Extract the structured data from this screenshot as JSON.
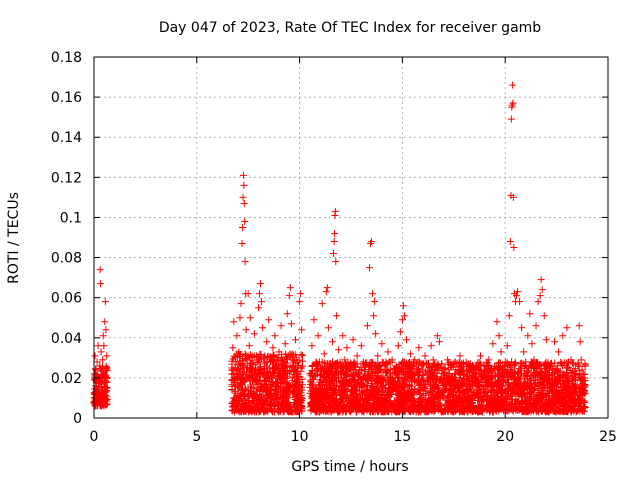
{
  "chart_data": {
    "type": "scatter",
    "title": "Day 047 of 2023, Rate Of TEC Index for receiver gamb",
    "xlabel": "GPS time / hours",
    "ylabel": "ROTI / TECUs",
    "xlim": [
      0,
      25
    ],
    "ylim": [
      0,
      0.18
    ],
    "xticks": [
      0,
      5,
      10,
      15,
      20,
      25
    ],
    "yticks": [
      0,
      0.02,
      0.04,
      0.06,
      0.08,
      0.1,
      0.12,
      0.14,
      0.16,
      0.18
    ],
    "xtick_labels": [
      "0",
      "5",
      "10",
      "15",
      "20",
      "25"
    ],
    "ytick_labels": [
      "0",
      "0.02",
      "0.04",
      "0.06",
      "0.08",
      "0.1",
      "0.12",
      "0.14",
      "0.16",
      "0.18"
    ],
    "grid": true,
    "marker": "+",
    "color": "#ff0000",
    "series": [
      {
        "name": "ROTI",
        "points": [
          [
            0.0,
            0.012
          ],
          [
            0.02,
            0.02
          ],
          [
            0.05,
            0.031
          ],
          [
            0.08,
            0.016
          ],
          [
            0.1,
            0.024
          ],
          [
            0.12,
            0.009
          ],
          [
            0.15,
            0.028
          ],
          [
            0.18,
            0.014
          ],
          [
            0.2,
            0.036
          ],
          [
            0.22,
            0.019
          ],
          [
            0.25,
            0.011
          ],
          [
            0.28,
            0.026
          ],
          [
            0.3,
            0.074
          ],
          [
            0.32,
            0.067
          ],
          [
            0.35,
            0.033
          ],
          [
            0.38,
            0.021
          ],
          [
            0.4,
            0.013
          ],
          [
            0.42,
            0.029
          ],
          [
            0.45,
            0.041
          ],
          [
            0.48,
            0.036
          ],
          [
            0.5,
            0.018
          ],
          [
            0.52,
            0.048
          ],
          [
            0.55,
            0.058
          ],
          [
            0.58,
            0.044
          ],
          [
            0.6,
            0.025
          ],
          [
            0.62,
            0.031
          ],
          [
            0.65,
            0.015
          ],
          [
            6.7,
            0.022
          ],
          [
            6.75,
            0.035
          ],
          [
            6.8,
            0.048
          ],
          [
            6.85,
            0.016
          ],
          [
            6.9,
            0.028
          ],
          [
            6.95,
            0.041
          ],
          [
            7.0,
            0.019
          ],
          [
            7.05,
            0.033
          ],
          [
            7.1,
            0.05
          ],
          [
            7.15,
            0.057
          ],
          [
            7.2,
            0.087
          ],
          [
            7.22,
            0.095
          ],
          [
            7.25,
            0.11
          ],
          [
            7.27,
            0.121
          ],
          [
            7.29,
            0.116
          ],
          [
            7.31,
            0.107
          ],
          [
            7.33,
            0.098
          ],
          [
            7.35,
            0.078
          ],
          [
            7.38,
            0.062
          ],
          [
            7.4,
            0.044
          ],
          [
            7.45,
            0.029
          ],
          [
            7.5,
            0.062
          ],
          [
            7.55,
            0.036
          ],
          [
            7.6,
            0.05
          ],
          [
            7.7,
            0.021
          ],
          [
            7.8,
            0.042
          ],
          [
            7.9,
            0.031
          ],
          [
            8.0,
            0.055
          ],
          [
            8.05,
            0.062
          ],
          [
            8.1,
            0.067
          ],
          [
            8.15,
            0.058
          ],
          [
            8.2,
            0.045
          ],
          [
            8.3,
            0.027
          ],
          [
            8.4,
            0.038
          ],
          [
            8.5,
            0.049
          ],
          [
            8.6,
            0.023
          ],
          [
            8.7,
            0.035
          ],
          [
            8.8,
            0.041
          ],
          [
            8.9,
            0.028
          ],
          [
            9.0,
            0.033
          ],
          [
            9.1,
            0.046
          ],
          [
            9.2,
            0.021
          ],
          [
            9.3,
            0.037
          ],
          [
            9.4,
            0.052
          ],
          [
            9.5,
            0.061
          ],
          [
            9.55,
            0.065
          ],
          [
            9.6,
            0.047
          ],
          [
            9.7,
            0.029
          ],
          [
            9.8,
            0.039
          ],
          [
            9.9,
            0.025
          ],
          [
            10.0,
            0.058
          ],
          [
            10.05,
            0.062
          ],
          [
            10.1,
            0.044
          ],
          [
            10.5,
            0.022
          ],
          [
            10.6,
            0.036
          ],
          [
            10.7,
            0.049
          ],
          [
            10.8,
            0.028
          ],
          [
            10.9,
            0.041
          ],
          [
            11.0,
            0.019
          ],
          [
            11.1,
            0.057
          ],
          [
            11.2,
            0.032
          ],
          [
            11.3,
            0.063
          ],
          [
            11.35,
            0.065
          ],
          [
            11.4,
            0.045
          ],
          [
            11.5,
            0.026
          ],
          [
            11.6,
            0.038
          ],
          [
            11.65,
            0.082
          ],
          [
            11.68,
            0.088
          ],
          [
            11.7,
            0.092
          ],
          [
            11.72,
            0.101
          ],
          [
            11.74,
            0.103
          ],
          [
            11.76,
            0.078
          ],
          [
            11.8,
            0.051
          ],
          [
            11.9,
            0.034
          ],
          [
            12.0,
            0.022
          ],
          [
            12.1,
            0.041
          ],
          [
            12.2,
            0.029
          ],
          [
            12.3,
            0.035
          ],
          [
            12.4,
            0.018
          ],
          [
            12.5,
            0.027
          ],
          [
            12.6,
            0.039
          ],
          [
            12.7,
            0.024
          ],
          [
            12.8,
            0.031
          ],
          [
            12.9,
            0.022
          ],
          [
            13.0,
            0.036
          ],
          [
            13.1,
            0.028
          ],
          [
            13.2,
            0.019
          ],
          [
            13.3,
            0.046
          ],
          [
            13.4,
            0.075
          ],
          [
            13.45,
            0.087
          ],
          [
            13.5,
            0.088
          ],
          [
            13.55,
            0.062
          ],
          [
            13.6,
            0.051
          ],
          [
            13.65,
            0.058
          ],
          [
            13.7,
            0.042
          ],
          [
            13.8,
            0.031
          ],
          [
            13.9,
            0.024
          ],
          [
            14.0,
            0.037
          ],
          [
            14.1,
            0.019
          ],
          [
            14.2,
            0.028
          ],
          [
            14.3,
            0.033
          ],
          [
            14.4,
            0.022
          ],
          [
            14.5,
            0.029
          ],
          [
            14.6,
            0.017
          ],
          [
            14.7,
            0.025
          ],
          [
            14.8,
            0.036
          ],
          [
            14.9,
            0.043
          ],
          [
            15.0,
            0.049
          ],
          [
            15.05,
            0.056
          ],
          [
            15.1,
            0.051
          ],
          [
            15.2,
            0.039
          ],
          [
            15.3,
            0.027
          ],
          [
            15.4,
            0.032
          ],
          [
            15.5,
            0.021
          ],
          [
            15.6,
            0.029
          ],
          [
            15.7,
            0.024
          ],
          [
            15.8,
            0.035
          ],
          [
            15.9,
            0.018
          ],
          [
            16.0,
            0.027
          ],
          [
            16.1,
            0.031
          ],
          [
            16.2,
            0.022
          ],
          [
            16.3,
            0.025
          ],
          [
            16.4,
            0.036
          ],
          [
            16.5,
            0.029
          ],
          [
            16.6,
            0.019
          ],
          [
            16.7,
            0.041
          ],
          [
            16.8,
            0.038
          ],
          [
            16.9,
            0.027
          ],
          [
            17.0,
            0.022
          ],
          [
            17.2,
            0.029
          ],
          [
            17.4,
            0.018
          ],
          [
            17.6,
            0.024
          ],
          [
            17.8,
            0.031
          ],
          [
            18.0,
            0.022
          ],
          [
            18.2,
            0.027
          ],
          [
            18.4,
            0.019
          ],
          [
            18.6,
            0.026
          ],
          [
            18.8,
            0.031
          ],
          [
            19.0,
            0.024
          ],
          [
            19.2,
            0.029
          ],
          [
            19.4,
            0.037
          ],
          [
            19.6,
            0.048
          ],
          [
            19.7,
            0.041
          ],
          [
            19.8,
            0.033
          ],
          [
            20.0,
            0.028
          ],
          [
            20.1,
            0.036
          ],
          [
            20.2,
            0.051
          ],
          [
            20.25,
            0.088
          ],
          [
            20.28,
            0.111
          ],
          [
            20.3,
            0.149
          ],
          [
            20.32,
            0.155
          ],
          [
            20.34,
            0.156
          ],
          [
            20.36,
            0.166
          ],
          [
            20.38,
            0.157
          ],
          [
            20.4,
            0.11
          ],
          [
            20.42,
            0.085
          ],
          [
            20.45,
            0.062
          ],
          [
            20.5,
            0.058
          ],
          [
            20.55,
            0.061
          ],
          [
            20.6,
            0.063
          ],
          [
            20.7,
            0.058
          ],
          [
            20.8,
            0.045
          ],
          [
            20.9,
            0.033
          ],
          [
            21.0,
            0.028
          ],
          [
            21.1,
            0.041
          ],
          [
            21.2,
            0.052
          ],
          [
            21.3,
            0.037
          ],
          [
            21.4,
            0.029
          ],
          [
            21.5,
            0.046
          ],
          [
            21.6,
            0.058
          ],
          [
            21.7,
            0.061
          ],
          [
            21.75,
            0.069
          ],
          [
            21.8,
            0.064
          ],
          [
            21.9,
            0.051
          ],
          [
            22.0,
            0.039
          ],
          [
            22.2,
            0.027
          ],
          [
            22.4,
            0.038
          ],
          [
            22.6,
            0.033
          ],
          [
            22.8,
            0.041
          ],
          [
            23.0,
            0.045
          ],
          [
            23.2,
            0.029
          ],
          [
            23.4,
            0.021
          ],
          [
            23.6,
            0.046
          ],
          [
            23.65,
            0.038
          ],
          [
            23.7,
            0.029
          ],
          [
            23.8,
            0.022
          ],
          [
            23.9,
            0.016
          ]
        ]
      }
    ],
    "bands": [
      {
        "x_start": 0.0,
        "x_end": 0.65,
        "y_min": 0.006,
        "y_max": 0.026
      },
      {
        "x_start": 6.7,
        "x_end": 10.15,
        "y_min": 0.003,
        "y_max": 0.032
      },
      {
        "x_start": 10.5,
        "x_end": 23.9,
        "y_min": 0.003,
        "y_max": 0.028
      }
    ]
  }
}
